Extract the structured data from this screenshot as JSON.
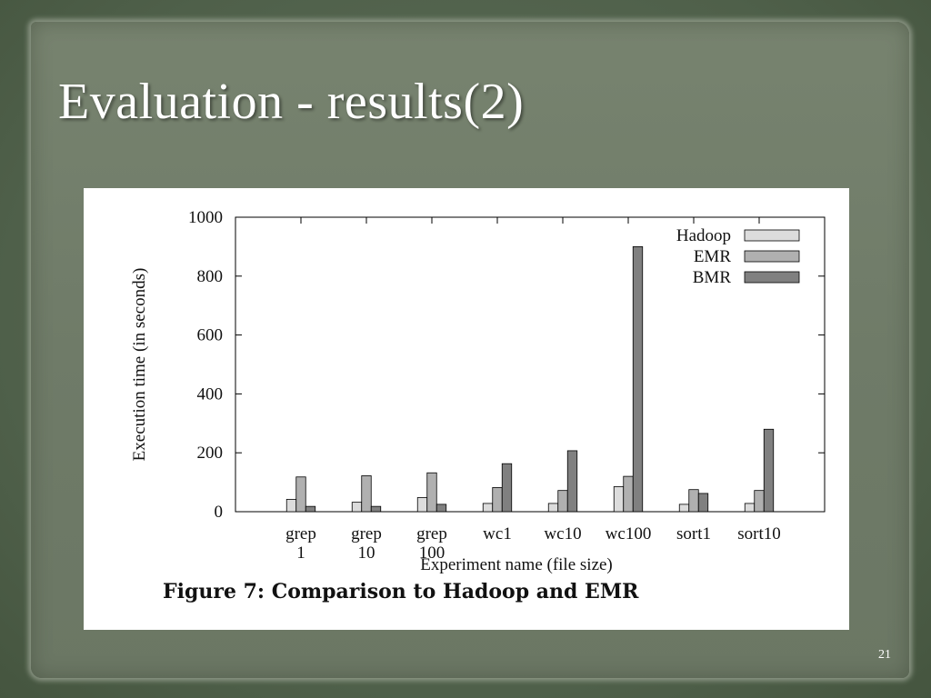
{
  "slide": {
    "title": "Evaluation - results(2)",
    "page_number": "21"
  },
  "figure": {
    "caption": "Figure 7:  Comparison to Hadoop and EMR"
  },
  "chart_data": {
    "type": "bar",
    "categories": [
      [
        "grep",
        "1"
      ],
      [
        "grep",
        "10"
      ],
      [
        "grep",
        "100"
      ],
      [
        "wc1"
      ],
      [
        "wc10"
      ],
      [
        "wc100"
      ],
      [
        "sort1"
      ],
      [
        "sort10"
      ]
    ],
    "series": [
      {
        "name": "Hadoop",
        "color": "#dcdcdc",
        "values": [
          42,
          32,
          48,
          28,
          28,
          85,
          25,
          28
        ]
      },
      {
        "name": "EMR",
        "color": "#b0b0b0",
        "values": [
          118,
          122,
          132,
          82,
          72,
          120,
          75,
          72
        ]
      },
      {
        "name": "BMR",
        "color": "#808080",
        "values": [
          18,
          18,
          25,
          163,
          207,
          900,
          62,
          280
        ]
      }
    ],
    "xlabel": "Experiment name (file size)",
    "ylabel": "Execution time (in seconds)",
    "ylim": [
      0,
      1000
    ],
    "yticks": [
      0,
      200,
      400,
      600,
      800,
      1000
    ],
    "legend_position": "top-right",
    "grid": false
  }
}
